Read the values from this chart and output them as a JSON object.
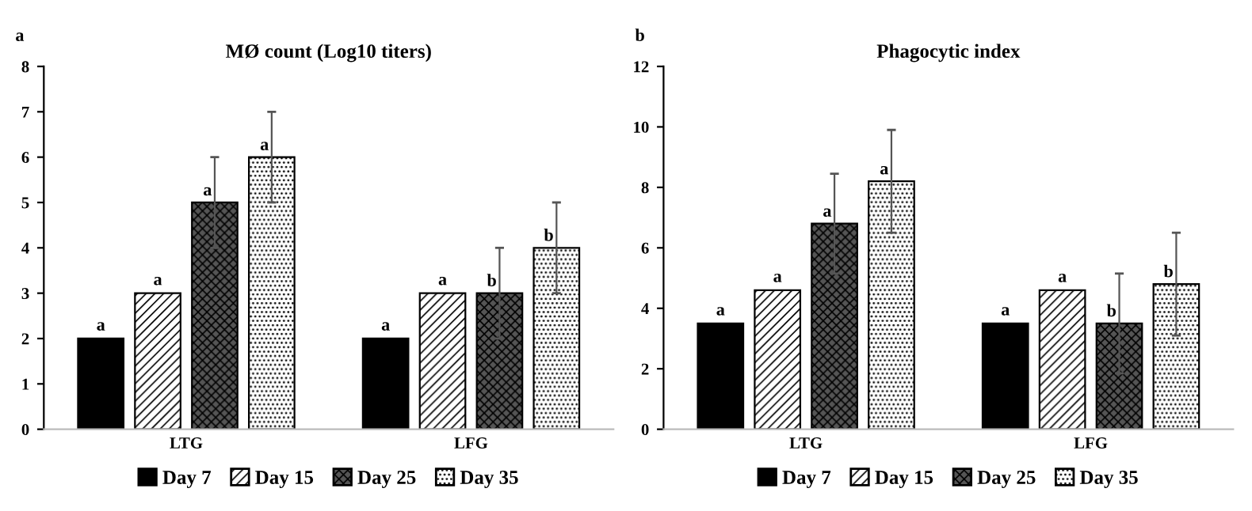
{
  "chart_data": [
    {
      "type": "bar",
      "title": "MØ count (Log10 titers)",
      "annotations": [
        "a"
      ],
      "categories": [
        "LTG",
        "LFG"
      ],
      "series": [
        {
          "name": "Day 7",
          "color": "#000000",
          "values": [
            2,
            2
          ],
          "value_labels": [
            "a",
            "a"
          ]
        },
        {
          "name": "Day 15",
          "color": "#000000",
          "values": [
            3,
            3
          ],
          "value_labels": [
            "a",
            "a"
          ]
        },
        {
          "name": "Day 25",
          "color": "#000000",
          "values": [
            5,
            3
          ],
          "errors": [
            1,
            1
          ],
          "value_labels": [
            "a",
            "b"
          ]
        },
        {
          "name": "Day 35",
          "color": "#000000",
          "values": [
            6,
            4
          ],
          "errors": [
            1,
            1
          ],
          "value_labels": [
            "a",
            "b"
          ]
        }
      ],
      "ylim": [
        0,
        8
      ],
      "yticks": [
        0,
        1,
        2,
        3,
        4,
        5,
        6,
        7,
        8
      ],
      "grid": false,
      "legend": "bottom"
    },
    {
      "type": "bar",
      "title": "Phagocytic index",
      "annotations": [
        "b"
      ],
      "categories": [
        "LTG",
        "LFG"
      ],
      "series": [
        {
          "name": "Day 7",
          "color": "#000000",
          "values": [
            3.5,
            3.5
          ],
          "value_labels": [
            "a",
            "a"
          ]
        },
        {
          "name": "Day 15",
          "color": "#000000",
          "values": [
            4.6,
            4.6
          ],
          "value_labels": [
            "a",
            "a"
          ]
        },
        {
          "name": "Day 25",
          "color": "#000000",
          "values": [
            6.8,
            3.5
          ],
          "errors": [
            1.65,
            1.65
          ],
          "value_labels": [
            "a",
            "b"
          ]
        },
        {
          "name": "Day 35",
          "color": "#000000",
          "values": [
            8.2,
            4.8
          ],
          "errors": [
            1.7,
            1.7
          ],
          "value_labels": [
            "a",
            "b"
          ]
        }
      ],
      "ylim": [
        0,
        12
      ],
      "yticks": [
        0,
        2,
        4,
        6,
        8,
        10,
        12
      ],
      "grid": false,
      "legend": "bottom"
    }
  ]
}
